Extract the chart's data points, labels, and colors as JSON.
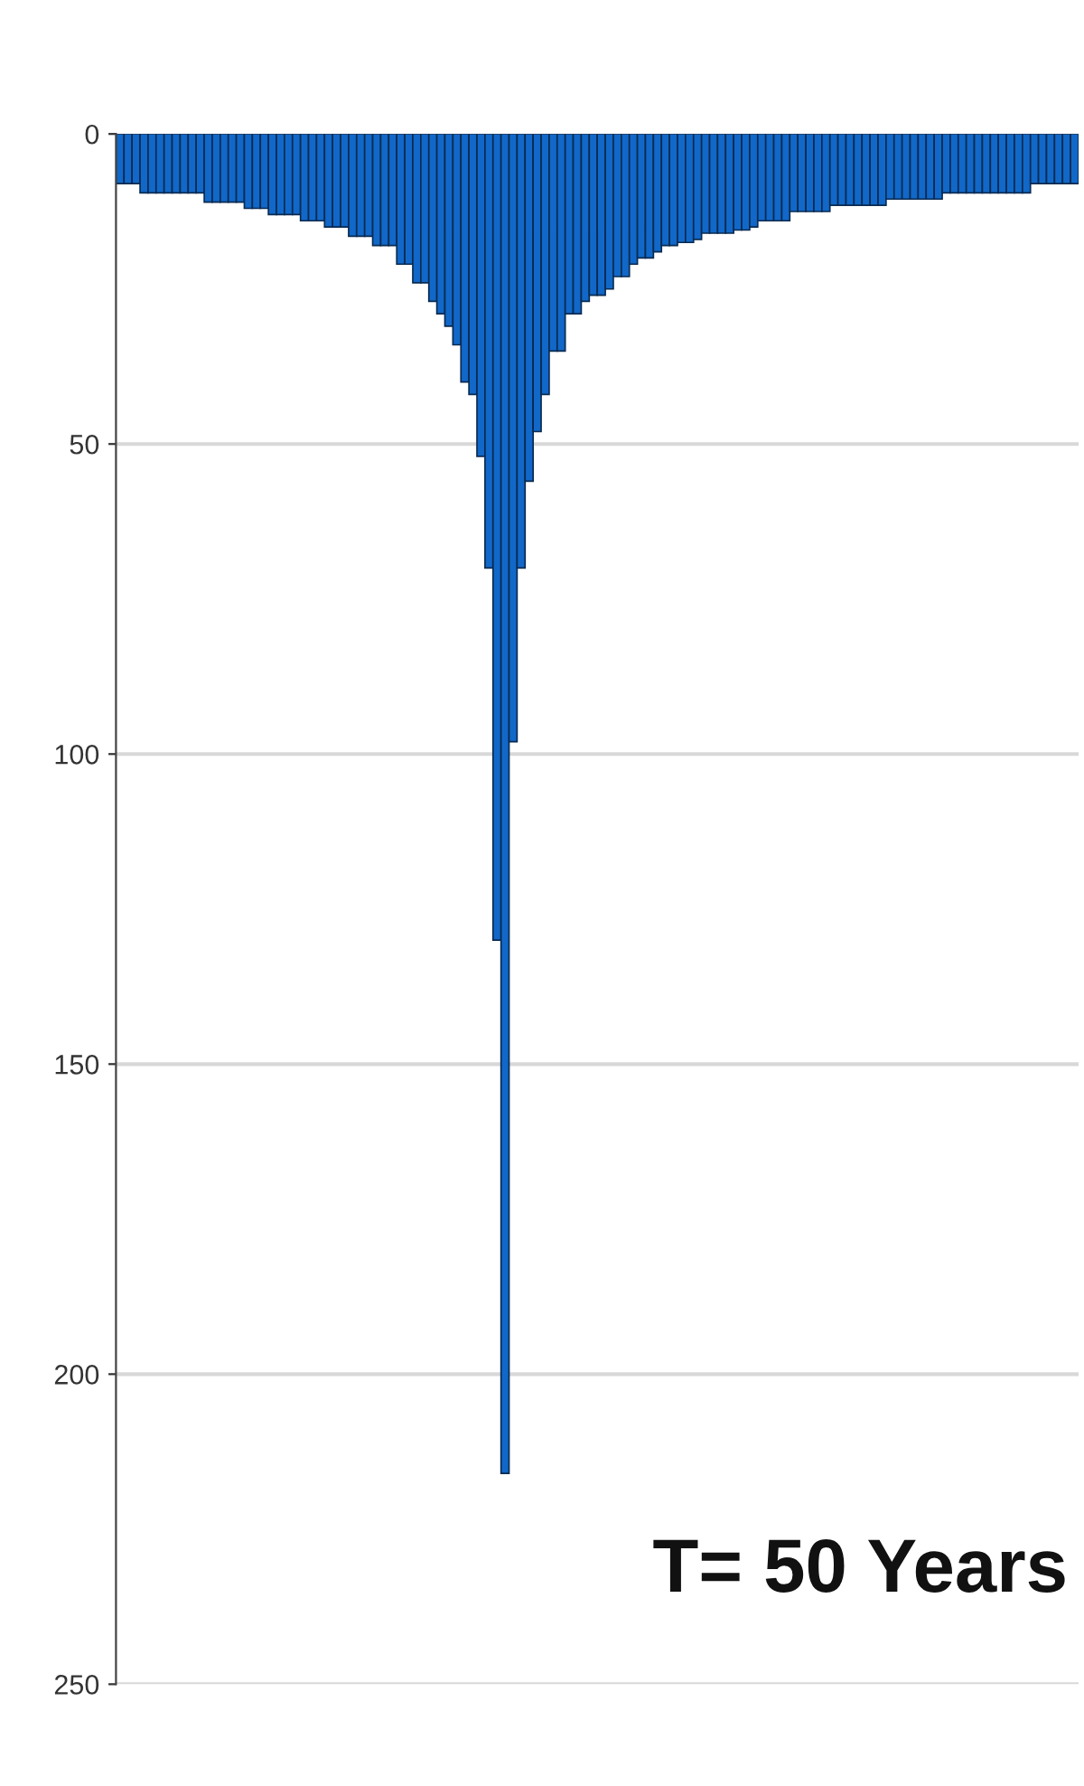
{
  "chart_data": {
    "type": "bar",
    "categories": [
      null,
      null,
      null,
      null,
      null,
      null,
      null,
      null,
      null,
      null,
      null,
      null,
      null,
      null,
      null,
      null,
      null,
      null,
      null,
      null,
      null,
      null,
      null,
      null,
      null,
      null,
      null,
      null,
      null,
      null,
      null,
      null,
      null,
      null,
      null,
      null,
      null,
      null,
      null,
      null,
      null,
      null,
      null,
      null,
      null,
      null,
      null,
      null,
      null,
      null,
      null,
      null,
      null,
      null,
      null,
      null,
      null,
      null,
      null,
      null,
      null,
      null,
      null,
      null,
      null,
      null,
      null,
      null,
      null,
      null,
      null,
      null,
      null,
      null,
      null,
      null,
      null,
      null,
      null,
      null,
      null,
      null,
      null,
      null,
      null,
      null,
      null,
      null,
      null,
      null,
      null,
      null,
      null,
      null,
      null,
      null,
      null,
      null,
      null,
      null,
      null,
      null,
      null,
      null,
      null,
      null,
      null,
      null,
      null,
      null,
      null,
      null,
      null,
      null,
      null,
      null,
      null,
      null,
      null,
      null
    ],
    "values": [
      8,
      8,
      8,
      9.5,
      9.5,
      9.5,
      9.5,
      9.5,
      9.5,
      9.5,
      9.5,
      11,
      11,
      11,
      11,
      11,
      12,
      12,
      12,
      13,
      13,
      13,
      13,
      14,
      14,
      14,
      15,
      15,
      15,
      16.5,
      16.5,
      16.5,
      18,
      18,
      18,
      21,
      21,
      24,
      24,
      27,
      29,
      31,
      34,
      40,
      42,
      52,
      70,
      130,
      216,
      98,
      70,
      56,
      48,
      42,
      35,
      35,
      29,
      29,
      27,
      26,
      26,
      25,
      23,
      23,
      21,
      20,
      20,
      19,
      18,
      18,
      17.5,
      17.5,
      17,
      16,
      16,
      16,
      16,
      15.5,
      15.5,
      15,
      14,
      14,
      14,
      14,
      12.5,
      12.5,
      12.5,
      12.5,
      12.5,
      11.5,
      11.5,
      11.5,
      11.5,
      11.5,
      11.5,
      11.5,
      10.5,
      10.5,
      10.5,
      10.5,
      10.5,
      10.5,
      10.5,
      9.5,
      9.5,
      9.5,
      9.5,
      9.5,
      9.5,
      9.5,
      9.5,
      9.5,
      9.5,
      9.5,
      8,
      8,
      8,
      8,
      8,
      8
    ],
    "color": "#1168c8",
    "ylim": [
      250,
      0
    ],
    "yticks": [
      0,
      50,
      100,
      150,
      200,
      250
    ],
    "grid": "y",
    "annotations": [
      "T= 50 Years"
    ]
  }
}
